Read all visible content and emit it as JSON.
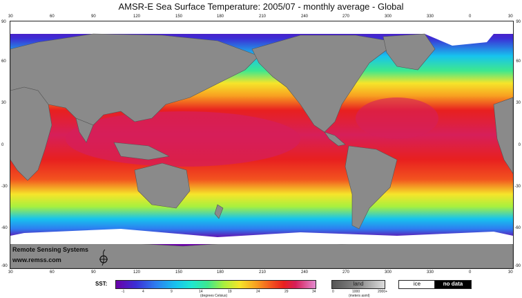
{
  "title": "AMSR-E Sea Surface Temperature: 2005/07 - monthly average - Global",
  "top_ticks": [
    "30",
    "60",
    "90",
    "120",
    "150",
    "180",
    "210",
    "240",
    "270",
    "300",
    "330",
    "0",
    "30"
  ],
  "bottom_ticks": [
    "30",
    "60",
    "90",
    "120",
    "150",
    "180",
    "210",
    "240",
    "270",
    "300",
    "330",
    "0",
    "30"
  ],
  "left_ticks": [
    "90",
    "60",
    "30",
    "0",
    "-30",
    "-60",
    "-90"
  ],
  "right_ticks": [
    "90",
    "60",
    "30",
    "0",
    "-30",
    "-60",
    "-90"
  ],
  "credits": {
    "org": "Remote Sensing Systems",
    "url": "www.remss.com"
  },
  "legend": {
    "sst_label": "SST:",
    "sst_ticks": [
      "-1",
      "4",
      "9",
      "14",
      "19",
      "24",
      "29",
      "34"
    ],
    "sst_units": "(degrees Celsius)",
    "land_label": "land",
    "land_ticks": [
      "0",
      "1000",
      "2000+"
    ],
    "land_units": "(meters asml)",
    "ice_label": "ice",
    "nodata_label": "no data"
  },
  "colors": {
    "ocean_warm": "#e8201f",
    "ocean_hot": "#d61f5a",
    "land": "#8a8a8a",
    "ice": "#ffffff"
  }
}
